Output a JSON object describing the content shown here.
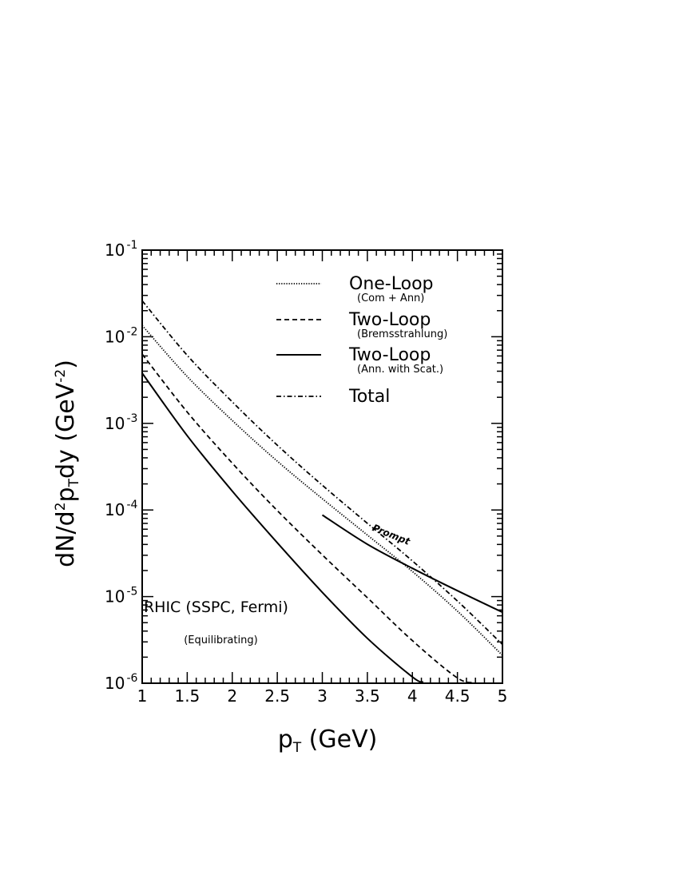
{
  "chart_data": {
    "type": "line",
    "xlabel": "p_T (GeV)",
    "ylabel": "dN/d²p_Tdy (GeV⁻²)",
    "xlim": [
      1,
      5
    ],
    "ylim": [
      1e-06,
      0.1
    ],
    "yscale": "log",
    "grid": false,
    "legend_position": "top-right",
    "x_ticks": [
      "1",
      "1.5",
      "2",
      "2.5",
      "3",
      "3.5",
      "4",
      "4.5",
      "5"
    ],
    "y_ticks": [
      {
        "value": 1e-06,
        "base": "10",
        "exp": "-6"
      },
      {
        "value": 1e-05,
        "base": "10",
        "exp": "-5"
      },
      {
        "value": 0.0001,
        "base": "10",
        "exp": "-4"
      },
      {
        "value": 0.001,
        "base": "10",
        "exp": "-3"
      },
      {
        "value": 0.01,
        "base": "10",
        "exp": "-2"
      },
      {
        "value": 0.1,
        "base": "10",
        "exp": "-1"
      }
    ],
    "series": [
      {
        "name": "One-Loop",
        "subname": "(Com + Ann)",
        "style": "dotted",
        "x": [
          1.0,
          1.5,
          2.0,
          2.5,
          3.0,
          3.5,
          4.0,
          4.5,
          5.0
        ],
        "y": [
          0.0135,
          0.00347,
          0.00108,
          0.000366,
          0.000135,
          5.13e-05,
          1.95e-05,
          6.8e-06,
          2.1e-06
        ]
      },
      {
        "name": "Two-Loop",
        "subname": "(Bremsstrahlung)",
        "style": "dashed",
        "x": [
          1.0,
          1.5,
          2.0,
          2.5,
          3.0,
          3.5,
          4.0,
          4.5,
          4.7
        ],
        "y": [
          0.0063,
          0.00135,
          0.000347,
          9.85e-05,
          3.03e-05,
          9.7e-06,
          3.1e-06,
          1.15e-06,
          1.02e-06
        ]
      },
      {
        "name": "Two-Loop",
        "subname": "(Ann. with Scat.)",
        "style": "solid",
        "x": [
          1.0,
          1.5,
          2.0,
          2.5,
          3.0,
          3.5,
          4.0,
          4.12
        ],
        "y": [
          0.0038,
          0.00072,
          0.000165,
          4.19e-05,
          1.12e-05,
          3.3e-06,
          1.18e-06,
          1.03e-06
        ]
      },
      {
        "name": "Total",
        "subname": "",
        "style": "dashdot",
        "x": [
          1.0,
          1.5,
          2.0,
          2.5,
          3.0,
          3.5,
          4.0,
          4.5,
          5.0
        ],
        "y": [
          0.026,
          0.0061,
          0.00177,
          0.00056,
          0.000193,
          7.02e-05,
          2.58e-05,
          8.9e-06,
          2.8e-06
        ]
      },
      {
        "name": "Prompt",
        "subname": "",
        "style": "solid",
        "x": [
          3.0,
          3.5,
          4.0,
          4.5,
          5.0
        ],
        "y": [
          8.75e-05,
          4.02e-05,
          2.12e-05,
          1.17e-05,
          6.6e-06
        ]
      }
    ],
    "annotations": [
      {
        "text": "Prompt",
        "x": 3.75,
        "y": 4.8e-05
      },
      {
        "text": "RHIC (SSPC, Fermi)",
        "x": 1.82,
        "y": 6.6e-06
      },
      {
        "text": "(Equilibrating)",
        "x": 1.82,
        "y": 2.9e-06
      }
    ]
  }
}
